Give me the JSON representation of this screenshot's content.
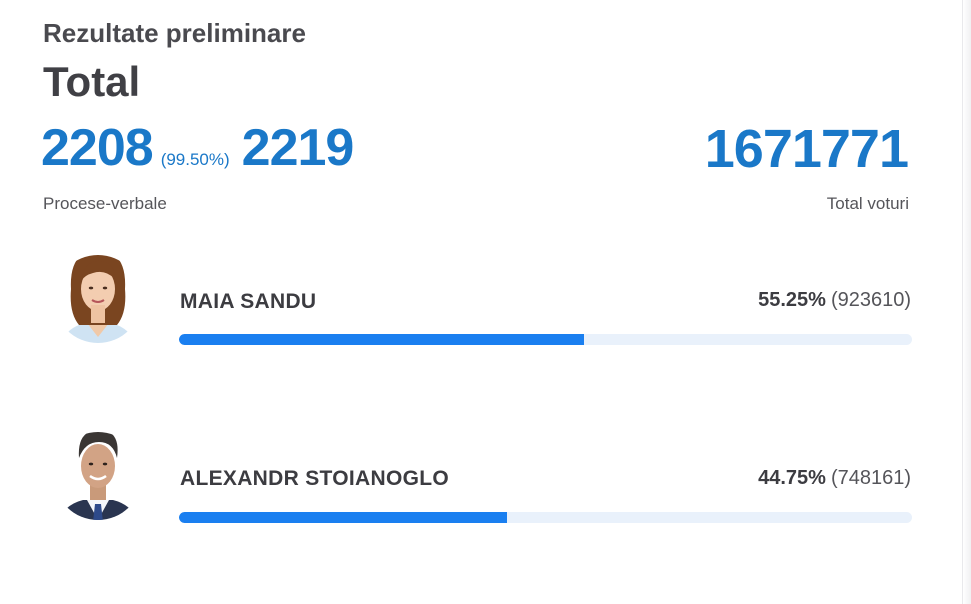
{
  "header": {
    "subtitle": "Rezultate preliminare",
    "title": "Total"
  },
  "stats": {
    "processed": "2208",
    "processed_pct": "(99.50%)",
    "total_reports": "2219",
    "processed_caption": "Procese-verbale",
    "total_votes": "1671771",
    "total_votes_caption": "Total voturi"
  },
  "candidates": [
    {
      "name": "MAIA SANDU",
      "percent": "55.25%",
      "votes": "(923610)",
      "share": 0.5525,
      "avatar_icon": "woman-portrait-icon"
    },
    {
      "name": "ALEXANDR STOIANOGLO",
      "percent": "44.75%",
      "votes": "(748161)",
      "share": 0.4475,
      "avatar_icon": "man-portrait-icon"
    }
  ],
  "colors": {
    "accent": "#1a78c8",
    "bar_fill": "#1a7ff0",
    "bar_track": "#e9f1fb"
  }
}
